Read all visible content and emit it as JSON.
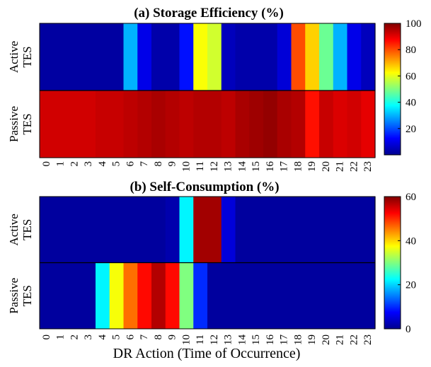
{
  "chart_data": [
    {
      "type": "heatmap",
      "title": "(a) Storage Efficiency (%)",
      "xlabel": "",
      "ylabel": "",
      "x_categories": [
        "0",
        "1",
        "2",
        "3",
        "4",
        "5",
        "6",
        "7",
        "8",
        "9",
        "10",
        "11",
        "12",
        "13",
        "14",
        "15",
        "16",
        "17",
        "18",
        "19",
        "20",
        "21",
        "22",
        "23"
      ],
      "rows": [
        {
          "label_lines": [
            "Active",
            "TES"
          ],
          "values": [
            2,
            2,
            2,
            2,
            2,
            2,
            30,
            10,
            3,
            3,
            14,
            62,
            58,
            5,
            3,
            3,
            3,
            8,
            80,
            67,
            48,
            30,
            10,
            5
          ]
        },
        {
          "label_lines": [
            "Passive",
            "TES"
          ],
          "values": [
            92,
            92,
            92,
            92,
            93,
            93,
            94,
            95,
            96,
            95,
            94,
            95,
            95,
            94,
            96,
            97,
            98,
            96,
            95,
            86,
            93,
            91,
            92,
            90
          ]
        }
      ],
      "colorbar": {
        "min": 0,
        "max": 100,
        "ticks": [
          20,
          40,
          60,
          80,
          100
        ]
      },
      "colormap": "jet"
    },
    {
      "type": "heatmap",
      "title": "(b) Self-Consumption (%)",
      "xlabel": "DR Action (Time of Occurrence)",
      "ylabel": "",
      "x_categories": [
        "0",
        "1",
        "2",
        "3",
        "4",
        "5",
        "6",
        "7",
        "8",
        "9",
        "10",
        "11",
        "12",
        "13",
        "14",
        "15",
        "16",
        "17",
        "18",
        "19",
        "20",
        "21",
        "22",
        "23"
      ],
      "rows": [
        {
          "label_lines": [
            "Active",
            "TES"
          ],
          "values": [
            1,
            1,
            1,
            1,
            1,
            1,
            1,
            1,
            1,
            2,
            22,
            58,
            58,
            5,
            1,
            1,
            1,
            1,
            1,
            1,
            1,
            1,
            1,
            1
          ]
        },
        {
          "label_lines": [
            "Passive",
            "TES"
          ],
          "values": [
            1,
            1,
            1,
            1,
            22,
            37,
            46,
            52,
            57,
            52,
            30,
            10,
            1,
            1,
            1,
            1,
            1,
            1,
            1,
            1,
            1,
            1,
            1,
            1
          ]
        }
      ],
      "colorbar": {
        "min": 0,
        "max": 60,
        "ticks": [
          0,
          20,
          40,
          60
        ]
      },
      "colormap": "jet"
    }
  ]
}
